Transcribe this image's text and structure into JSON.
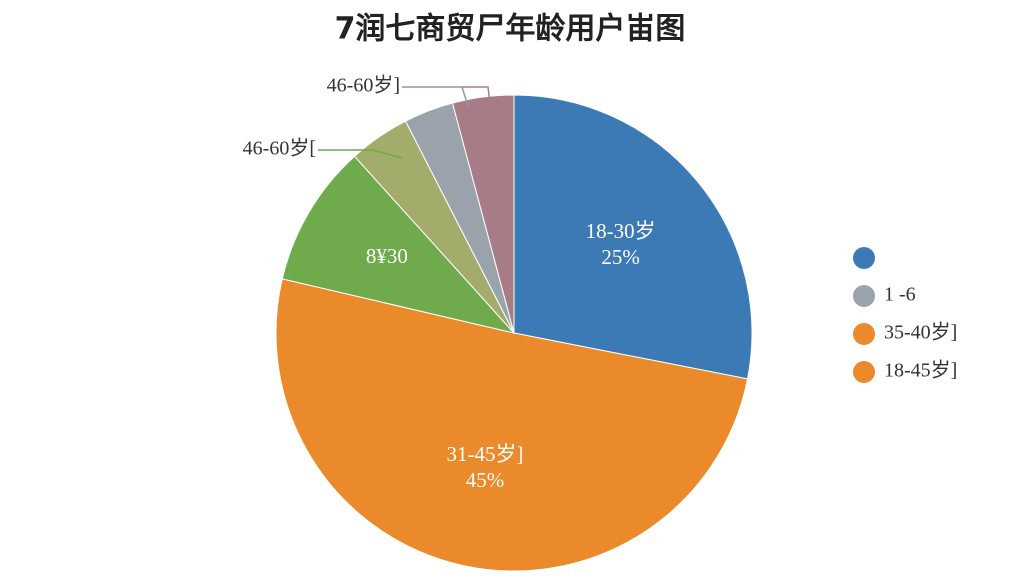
{
  "chart_data": {
    "type": "pie",
    "title": "7润七商贸尸年龄用户峀图",
    "categories": [
      "18-30岁",
      "31-45岁]",
      "8¥30",
      null,
      null,
      null
    ],
    "values": [
      25,
      45,
      8.6,
      3.7,
      3,
      3.7
    ],
    "value_labels": [
      "25%",
      "45%",
      null,
      null,
      null,
      null
    ],
    "colors": [
      "#3b7ab5",
      "#ea8a2a",
      "#6faa4c",
      "#a4ac6c",
      "#9aa3ab",
      "#a87c86"
    ],
    "annotations": [
      {
        "text": "46-60岁]",
        "color": "#8d9aa6"
      },
      {
        "text": "46-60岁[",
        "color": "#6faa4c"
      }
    ],
    "legend": [
      {
        "color": "#3b7ab5"
      },
      {
        "color": "#9aa3ab",
        "label": "1 -6"
      },
      {
        "color": "#ea8a2a",
        "label": "35-40岁]"
      },
      {
        "color": "#ea8a2a",
        "label": "18-45岁]"
      }
    ]
  }
}
